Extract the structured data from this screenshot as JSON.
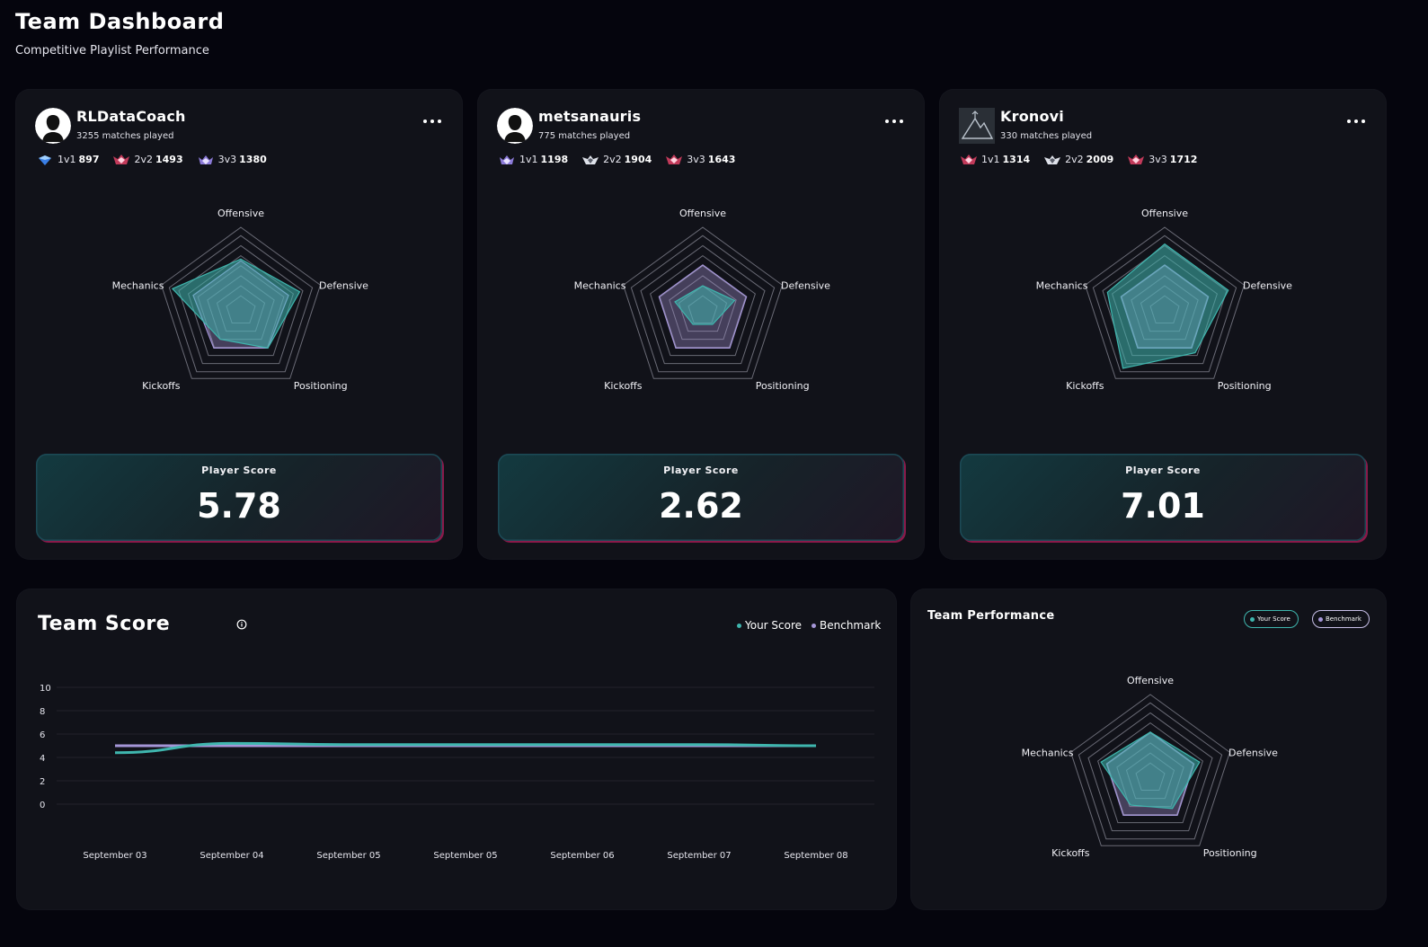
{
  "header": {
    "title": "Team Dashboard",
    "subtitle": "Competitive Playlist Performance"
  },
  "colors": {
    "your_score": "#3fb6ae",
    "benchmark": "#a596d8",
    "card_bg": "#111219",
    "page_bg": "#05050d"
  },
  "radar_axes": [
    "Offensive",
    "Defensive",
    "Positioning",
    "Kickoffs",
    "Mechanics"
  ],
  "players": [
    {
      "name": "RLDataCoach",
      "matches": "3255 matches played",
      "avatar_icon": "silhouette-avatar-icon",
      "ranks": [
        {
          "mode": "1v1",
          "mmr": "897",
          "icon": "diamond-rank-icon"
        },
        {
          "mode": "2v2",
          "mmr": "1493",
          "icon": "grand-champion-rank-icon"
        },
        {
          "mode": "3v3",
          "mmr": "1380",
          "icon": "champion-rank-icon"
        }
      ],
      "score_label": "Player Score",
      "score": "5.78",
      "radar": {
        "your_score": [
          0.62,
          0.74,
          0.55,
          0.42,
          0.86
        ],
        "benchmark": [
          0.6,
          0.6,
          0.55,
          0.55,
          0.6
        ]
      }
    },
    {
      "name": "metsanauris",
      "matches": "775 matches played",
      "avatar_icon": "silhouette-avatar-icon",
      "ranks": [
        {
          "mode": "1v1",
          "mmr": "1198",
          "icon": "champion-rank-icon"
        },
        {
          "mode": "2v2",
          "mmr": "1904",
          "icon": "supersonic-legend-rank-icon"
        },
        {
          "mode": "3v3",
          "mmr": "1643",
          "icon": "grand-champion-rank-icon"
        }
      ],
      "score_label": "Player Score",
      "score": "2.62",
      "radar": {
        "your_score": [
          0.3,
          0.4,
          0.2,
          0.2,
          0.35
        ],
        "benchmark": [
          0.55,
          0.55,
          0.55,
          0.55,
          0.55
        ]
      }
    },
    {
      "name": "Kronovi",
      "matches": "330 matches played",
      "avatar_icon": "mountain-avatar-icon",
      "ranks": [
        {
          "mode": "1v1",
          "mmr": "1314",
          "icon": "grand-champion-rank-icon"
        },
        {
          "mode": "2v2",
          "mmr": "2009",
          "icon": "supersonic-legend-rank-icon"
        },
        {
          "mode": "3v3",
          "mmr": "1712",
          "icon": "grand-champion-rank-icon"
        }
      ],
      "score_label": "Player Score",
      "score": "7.01",
      "radar": {
        "your_score": [
          0.8,
          0.8,
          0.62,
          0.85,
          0.72
        ],
        "benchmark": [
          0.55,
          0.55,
          0.55,
          0.55,
          0.55
        ]
      }
    }
  ],
  "team_score": {
    "title": "Team Score",
    "legend": {
      "your_score": "Your Score",
      "benchmark": "Benchmark"
    },
    "chart_data": {
      "type": "line",
      "categories": [
        "September 03",
        "September 04",
        "September 05",
        "September 05",
        "September 06",
        "September 07",
        "September 08"
      ],
      "series": [
        {
          "name": "Your Score",
          "values": [
            4.4,
            5.2,
            5.1,
            5.1,
            5.1,
            5.1,
            5.0
          ]
        },
        {
          "name": "Benchmark",
          "values": [
            5.0,
            5.0,
            5.0,
            5.0,
            5.0,
            5.0,
            5.0
          ]
        }
      ],
      "yticks": [
        0,
        2,
        4,
        6,
        8,
        10
      ],
      "ylim": [
        0,
        10
      ],
      "grid": true,
      "legend_position": "top-right"
    }
  },
  "team_performance": {
    "title": "Team Performance",
    "legend": {
      "your_score": "Your Score",
      "benchmark": "Benchmark"
    },
    "radar": {
      "your_score": [
        0.55,
        0.62,
        0.45,
        0.4,
        0.62
      ],
      "benchmark": [
        0.55,
        0.55,
        0.55,
        0.55,
        0.55
      ]
    }
  }
}
